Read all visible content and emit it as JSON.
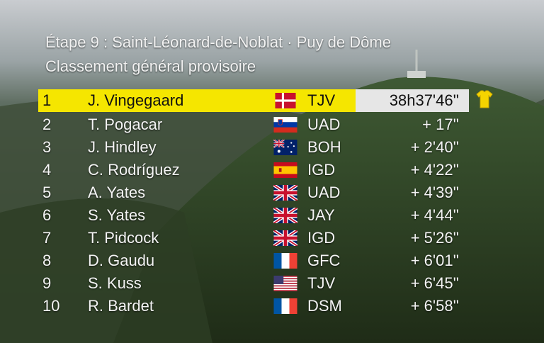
{
  "header": {
    "title": "Étape 9 : Saint-Léonard-de-Noblat · Puy de Dôme",
    "subtitle": "Classement général provisoire"
  },
  "leader_jersey": "yellow-jersey-icon",
  "standings": [
    {
      "pos": "1",
      "name": "J. Vingegaard",
      "flag": "denmark",
      "team": "TJV",
      "time": "38h37'46''"
    },
    {
      "pos": "2",
      "name": "T. Pogacar",
      "flag": "slovenia",
      "team": "UAD",
      "time": "+ 17''"
    },
    {
      "pos": "3",
      "name": "J. Hindley",
      "flag": "australia",
      "team": "BOH",
      "time": "+ 2'40''"
    },
    {
      "pos": "4",
      "name": "C. Rodríguez",
      "flag": "spain",
      "team": "IGD",
      "time": "+ 4'22''"
    },
    {
      "pos": "5",
      "name": "A. Yates",
      "flag": "great-britain",
      "team": "UAD",
      "time": "+ 4'39''"
    },
    {
      "pos": "6",
      "name": "S. Yates",
      "flag": "great-britain",
      "team": "JAY",
      "time": "+ 4'44''"
    },
    {
      "pos": "7",
      "name": "T. Pidcock",
      "flag": "great-britain",
      "team": "IGD",
      "time": "+ 5'26''"
    },
    {
      "pos": "8",
      "name": "D. Gaudu",
      "flag": "france",
      "team": "GFC",
      "time": "+ 6'01''"
    },
    {
      "pos": "9",
      "name": "S. Kuss",
      "flag": "usa",
      "team": "TJV",
      "time": "+ 6'45''"
    },
    {
      "pos": "10",
      "name": "R. Bardet",
      "flag": "france",
      "team": "DSM",
      "time": "+ 6'58''"
    }
  ],
  "colors": {
    "leader_bar": "#f5e600",
    "time_box": "#e6e6e6",
    "text": "#f4f4f4"
  }
}
